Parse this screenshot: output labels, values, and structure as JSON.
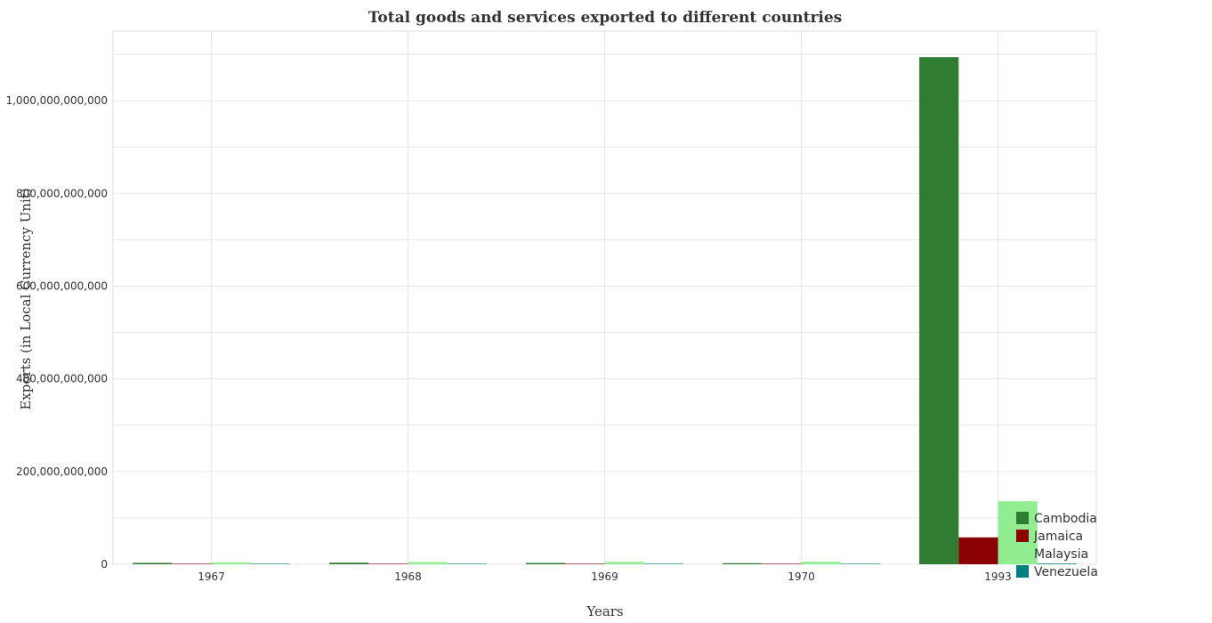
{
  "chart_data": {
    "type": "bar",
    "title": "Total goods and services exported to different countries",
    "xlabel": "Years",
    "ylabel": "Exports (in Local Currency Unit)",
    "categories": [
      "1967",
      "1968",
      "1969",
      "1970",
      "1993"
    ],
    "ylim": [
      0,
      1150000000000
    ],
    "yticks": [
      0,
      200000000000,
      400000000000,
      600000000000,
      800000000000,
      1000000000000
    ],
    "ytick_labels": [
      "0",
      "200,000,000,000",
      "400,000,000,000",
      "600,000,000,000",
      "800,000,000,000",
      "1,000,000,000,000"
    ],
    "grid": true,
    "legend_position": "bottom-right",
    "series": [
      {
        "name": "Cambodia",
        "color": "#2e7d32",
        "values": [
          3000000000,
          3400000000,
          2900000000,
          2300000000,
          1094000000000
        ]
      },
      {
        "name": "Jamaica",
        "color": "#8b0000",
        "values": [
          200000000,
          220000000,
          250000000,
          280000000,
          58000000000
        ]
      },
      {
        "name": "Malaysia",
        "color": "#90ee90",
        "values": [
          4200000000,
          4600000000,
          5200000000,
          5400000000,
          136000000000
        ]
      },
      {
        "name": "Venezuela",
        "color": "#008080",
        "values": [
          10000000,
          11000000,
          12000000,
          13000000,
          1500000000
        ]
      }
    ]
  }
}
